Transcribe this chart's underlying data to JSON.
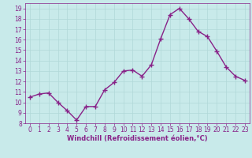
{
  "x": [
    0,
    1,
    2,
    3,
    4,
    5,
    6,
    7,
    8,
    9,
    10,
    11,
    12,
    13,
    14,
    15,
    16,
    17,
    18,
    19,
    20,
    21,
    22,
    23
  ],
  "y": [
    10.5,
    10.8,
    10.9,
    10.0,
    9.2,
    8.3,
    9.6,
    9.6,
    11.2,
    11.9,
    13.0,
    13.1,
    12.5,
    13.6,
    16.1,
    18.4,
    19.0,
    18.0,
    16.8,
    16.3,
    14.9,
    13.4,
    12.5,
    12.1
  ],
  "line_color": "#882288",
  "marker": "+",
  "marker_size": 4,
  "marker_lw": 1.0,
  "bg_color": "#c8eaea",
  "grid_color": "#b0d8d8",
  "xlabel": "Windchill (Refroidissement éolien,°C)",
  "tick_color": "#882288",
  "ylim": [
    8,
    19.5
  ],
  "xlim": [
    -0.5,
    23.5
  ],
  "yticks": [
    8,
    9,
    10,
    11,
    12,
    13,
    14,
    15,
    16,
    17,
    18,
    19
  ],
  "xticks": [
    0,
    1,
    2,
    3,
    4,
    5,
    6,
    7,
    8,
    9,
    10,
    11,
    12,
    13,
    14,
    15,
    16,
    17,
    18,
    19,
    20,
    21,
    22,
    23
  ],
  "xlabel_fontsize": 6.0,
  "tick_fontsize": 5.5,
  "linewidth": 1.0
}
